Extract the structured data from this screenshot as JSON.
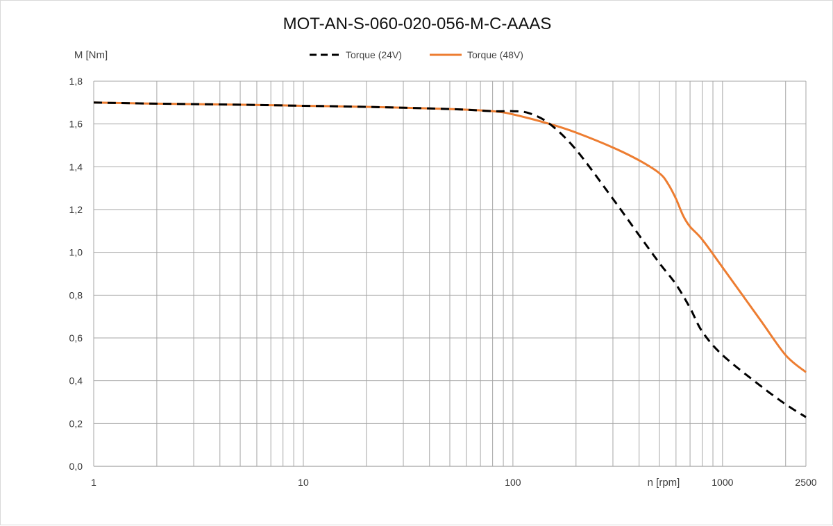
{
  "chart_data": {
    "type": "line",
    "title": "MOT-AN-S-060-020-056-M-C-AAAS",
    "ylabel": "M [Nm]",
    "xlabel": "n [rpm]",
    "x_scale": "log",
    "xlim": [
      1,
      2500
    ],
    "ylim": [
      0,
      1.8
    ],
    "x_tick_labels": [
      "1",
      "10",
      "100",
      "1000",
      "2500"
    ],
    "y_tick_labels": [
      "0,0",
      "0,2",
      "0,4",
      "0,6",
      "0,8",
      "1,0",
      "1,2",
      "1,4",
      "1,6",
      "1,8"
    ],
    "grid": true,
    "legend_position": "top",
    "series": [
      {
        "name": "Torque (24V)",
        "color": "#000000",
        "dashed": true,
        "x": [
          1,
          2,
          5,
          10,
          20,
          50,
          80,
          100,
          120,
          150,
          200,
          300,
          400,
          500,
          600,
          700,
          800,
          1000,
          1500,
          2000,
          2500
        ],
        "y": [
          1.7,
          1.695,
          1.69,
          1.685,
          1.68,
          1.67,
          1.66,
          1.66,
          1.65,
          1.6,
          1.48,
          1.25,
          1.08,
          0.95,
          0.85,
          0.74,
          0.63,
          0.52,
          0.38,
          0.29,
          0.23
        ]
      },
      {
        "name": "Torque (48V)",
        "color": "#ED7D31",
        "dashed": false,
        "x": [
          1,
          2,
          5,
          10,
          20,
          50,
          80,
          100,
          150,
          200,
          300,
          400,
          500,
          550,
          600,
          650,
          700,
          800,
          1000,
          1500,
          2000,
          2500
        ],
        "y": [
          1.7,
          1.695,
          1.69,
          1.685,
          1.68,
          1.67,
          1.66,
          1.645,
          1.6,
          1.56,
          1.49,
          1.43,
          1.37,
          1.32,
          1.25,
          1.17,
          1.12,
          1.06,
          0.93,
          0.69,
          0.52,
          0.44
        ]
      }
    ]
  }
}
